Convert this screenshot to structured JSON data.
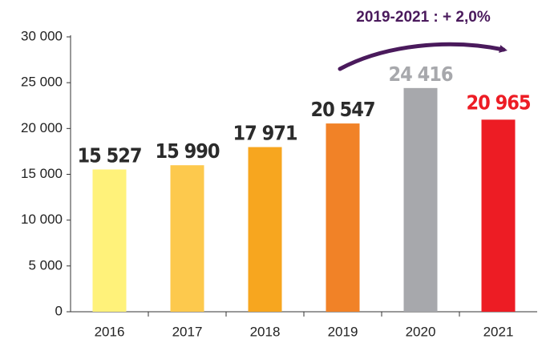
{
  "chart_data": {
    "type": "bar",
    "annotation": "2019-2021 : + 2,0%",
    "categories": [
      "2016",
      "2017",
      "2018",
      "2019",
      "2020",
      "2021"
    ],
    "values": [
      15527,
      15990,
      17971,
      20547,
      24416,
      20965
    ],
    "value_labels": [
      "15 527",
      "15 990",
      "17 971",
      "20 547",
      "24 416",
      "20 965"
    ],
    "colors": [
      "#fff27a",
      "#fdc94d",
      "#f7a61f",
      "#f18227",
      "#a7a8ac",
      "#ed1c24"
    ],
    "label_colors": [
      "#2b2b2b",
      "#2b2b2b",
      "#2b2b2b",
      "#2b2b2b",
      "#a7a8ac",
      "#ed1c24"
    ],
    "category_colors": [
      "#222222",
      "#222222",
      "#222222",
      "#222222",
      "#a7a8ac",
      "#222222"
    ],
    "ylim": [
      0,
      30000
    ],
    "yticks": [
      0,
      {
        "value": 5000,
        "label": "5 000"
      },
      {
        "value": 10000,
        "label": "10 000"
      },
      {
        "value": 15000,
        "label": "15 000"
      },
      {
        "value": 20000,
        "label": "20 000"
      },
      {
        "value": 25000,
        "label": "25 000"
      },
      {
        "value": 30000,
        "label": "30 000"
      }
    ],
    "grid": false
  }
}
